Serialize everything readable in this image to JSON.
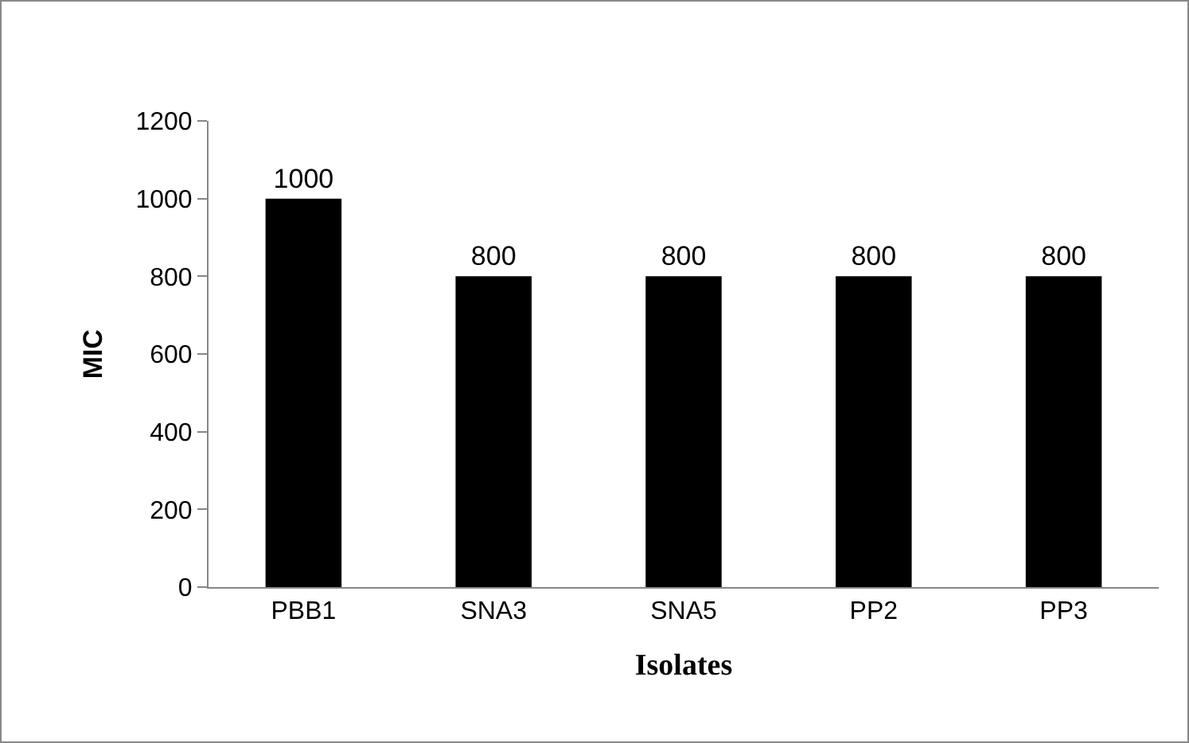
{
  "chart_data": {
    "type": "bar",
    "categories": [
      "PBB1",
      "SNA3",
      "SNA5",
      "PP2",
      "PP3"
    ],
    "values": [
      1000,
      800,
      800,
      800,
      800
    ],
    "color": "#000000",
    "xlabel": "Isolates",
    "ylabel": "MIC",
    "ylim": [
      0,
      1200
    ],
    "yticks": [
      0,
      200,
      400,
      600,
      800,
      1000,
      1200
    ],
    "grid": false,
    "legend": false,
    "data_labels": true
  }
}
